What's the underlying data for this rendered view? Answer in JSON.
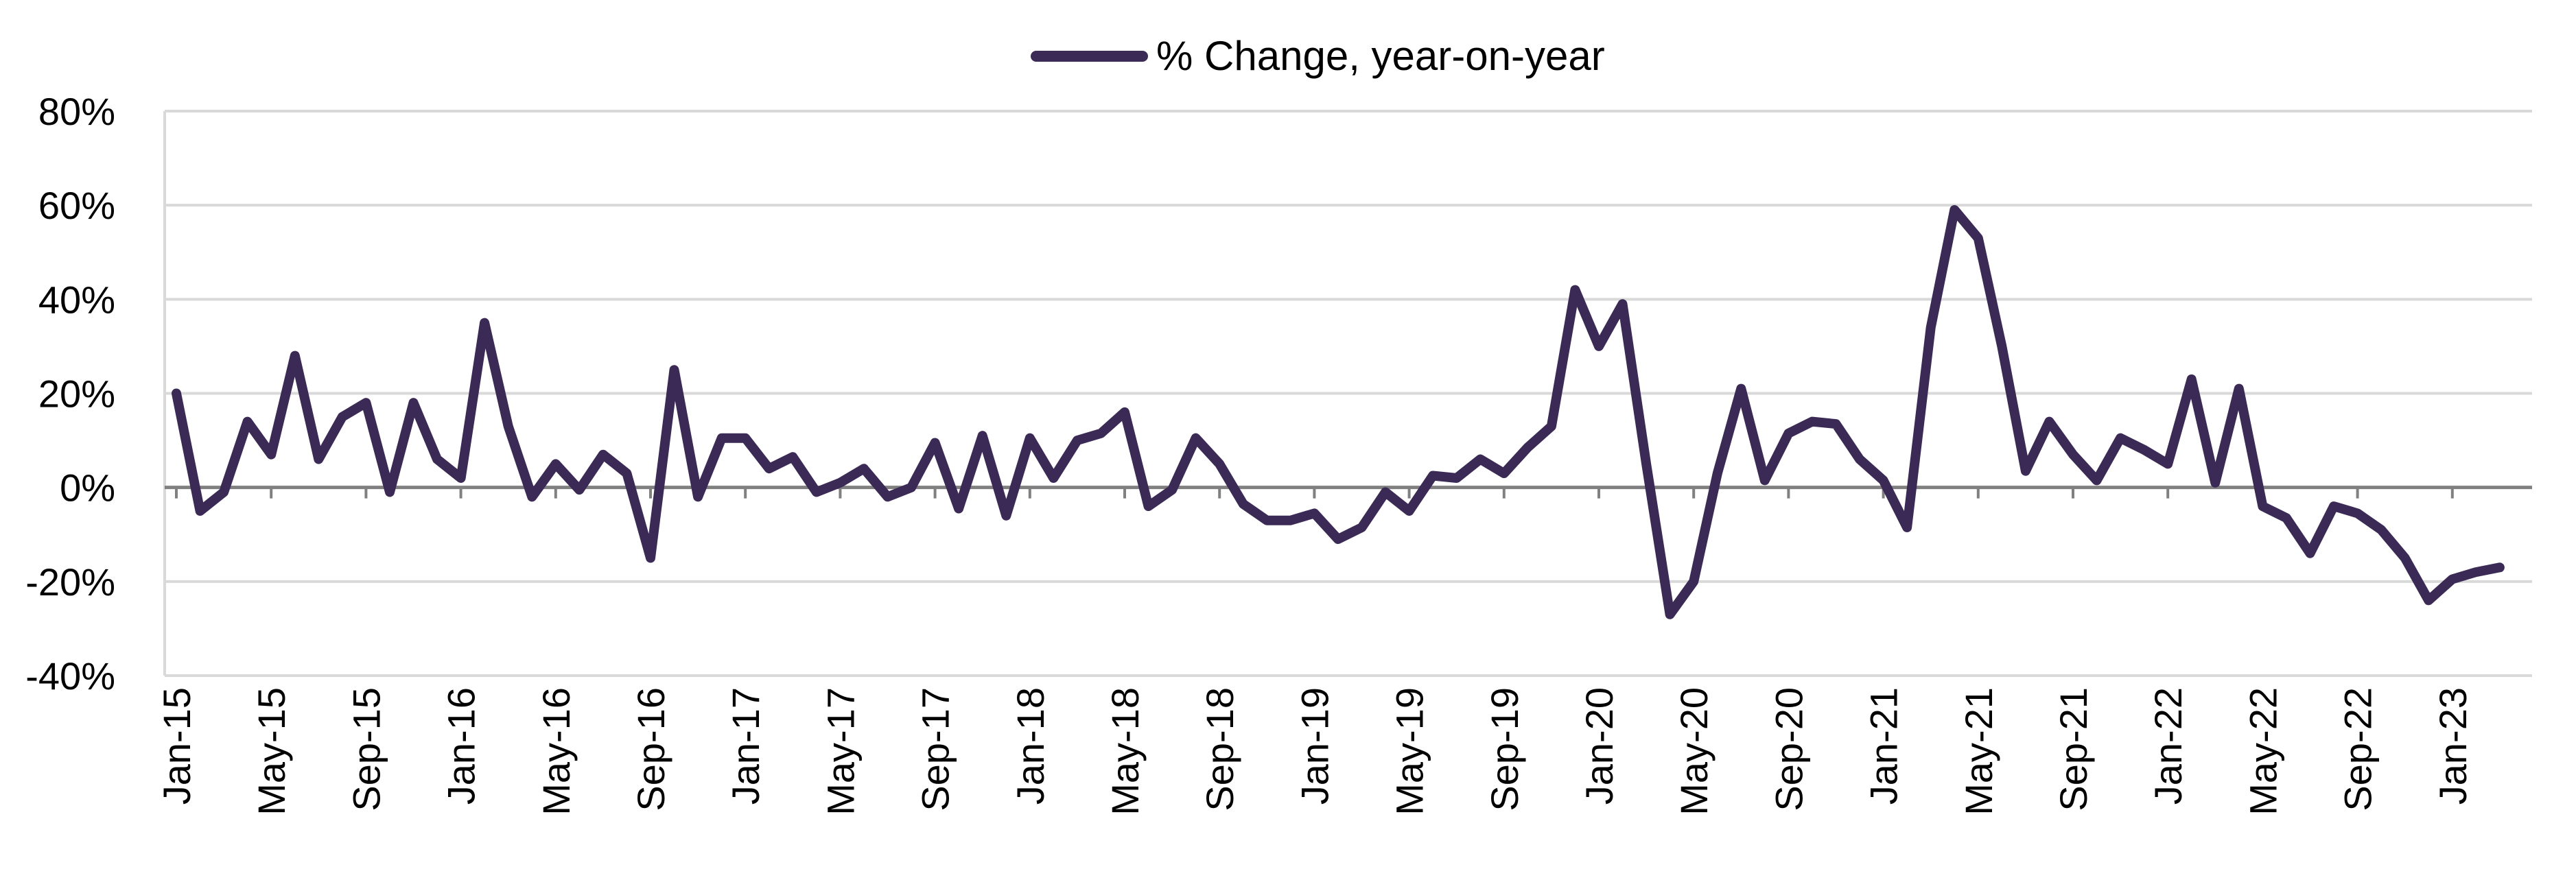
{
  "chart_data": {
    "type": "line",
    "title": "",
    "xlabel": "",
    "ylabel": "",
    "legend_position": "top-center",
    "grid": "horizontal",
    "ylim": [
      -40,
      80
    ],
    "y_ticks": [
      -40,
      -20,
      0,
      20,
      40,
      60,
      80
    ],
    "y_tick_labels": [
      "-40%",
      "-20%",
      "0%",
      "20%",
      "40%",
      "60%",
      "80%"
    ],
    "x_tick_labels": [
      "Jan-15",
      "May-15",
      "Sep-15",
      "Jan-16",
      "May-16",
      "Sep-16",
      "Jan-17",
      "May-17",
      "Sep-17",
      "Jan-18",
      "May-18",
      "Sep-18",
      "Jan-19",
      "May-19",
      "Sep-19",
      "Jan-20",
      "May-20",
      "Sep-20",
      "Jan-21",
      "May-21",
      "Sep-21",
      "Jan-22",
      "May-22",
      "Sep-22",
      "Jan-23"
    ],
    "x_start": "Jan-15",
    "x_end": "Apr-23",
    "series": [
      {
        "name": "% Change, year-on-year",
        "color": "#3b2a55",
        "values": [
          20,
          -5,
          -1,
          14,
          7,
          28,
          6,
          15,
          18,
          -1,
          18,
          6,
          2,
          35,
          13,
          -2,
          5,
          -0.5,
          7,
          3,
          -15,
          25,
          -2,
          10.5,
          10.5,
          4,
          6.5,
          -1,
          1,
          4,
          -2,
          0,
          9.5,
          -4.5,
          11,
          -6,
          10.5,
          2,
          10,
          11.5,
          16,
          -4,
          -0.5,
          10.5,
          5,
          -3.5,
          -7,
          -7,
          -5.5,
          -11,
          -8.5,
          -1,
          -5,
          2.5,
          2,
          6,
          3,
          8.5,
          13,
          42,
          30,
          39,
          5,
          -27,
          -20,
          3,
          21,
          1.5,
          11.5,
          14,
          13.5,
          6,
          1.5,
          -8.5,
          34,
          59,
          53,
          30,
          3.5,
          14,
          7,
          1.5,
          10.5,
          8,
          5,
          23,
          1,
          21,
          -4,
          -6.5,
          -14,
          -4,
          -5.5,
          -9,
          -15,
          -24,
          -19.5,
          -18,
          -17
        ]
      }
    ]
  }
}
